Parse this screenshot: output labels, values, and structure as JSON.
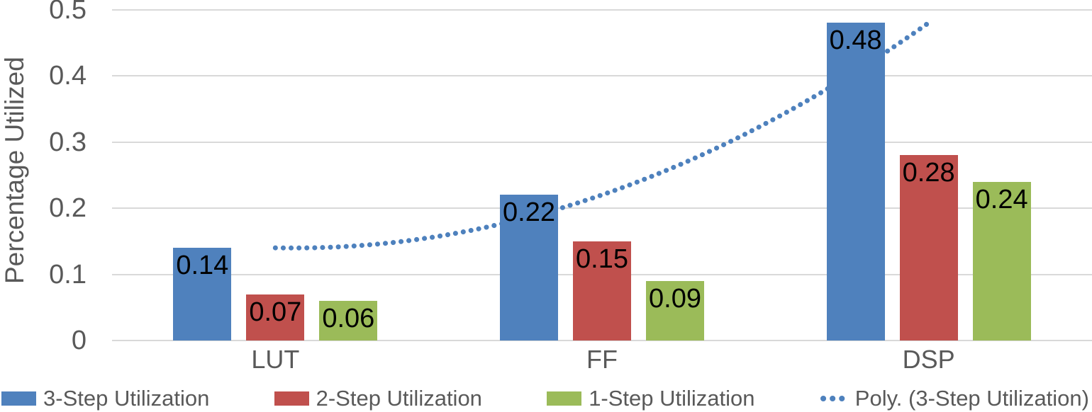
{
  "chart_data": {
    "type": "bar",
    "title": "",
    "xlabel": "",
    "ylabel": "Percentage Utilized",
    "categories": [
      "LUT",
      "FF",
      "DSP"
    ],
    "series": [
      {
        "name": "3-Step Utilization",
        "color": "#4F81BD",
        "values": [
          0.14,
          0.22,
          0.48
        ]
      },
      {
        "name": "2-Step Utilization",
        "color": "#C0504D",
        "values": [
          0.07,
          0.15,
          0.28
        ]
      },
      {
        "name": "1-Step Utilization",
        "color": "#9BBB59",
        "values": [
          0.06,
          0.09,
          0.24
        ]
      }
    ],
    "data_labels": [
      "0.14",
      "0.07",
      "0.06",
      "0.22",
      "0.15",
      "0.09",
      "0.48",
      "0.28",
      "0.24"
    ],
    "trendline": {
      "name": "Poly. (3-Step Utilization)",
      "type": "polynomial",
      "order": 2,
      "based_on_series": "3-Step Utilization",
      "color": "#4E81BD",
      "style": "dotted"
    },
    "ylim": [
      0,
      0.5
    ],
    "yticks": [
      0,
      0.1,
      0.2,
      0.3,
      0.4,
      0.5
    ],
    "ytick_labels": [
      "0",
      "0.1",
      "0.2",
      "0.3",
      "0.4",
      "0.5"
    ],
    "grid": true,
    "gridline_color": "#D9D9D9",
    "axis_text_color": "#595959",
    "data_label_color": "#000000",
    "legend_position": "bottom",
    "legend": [
      "3-Step Utilization",
      "2-Step Utilization",
      "1-Step Utilization",
      "Poly. (3-Step Utilization)"
    ]
  }
}
